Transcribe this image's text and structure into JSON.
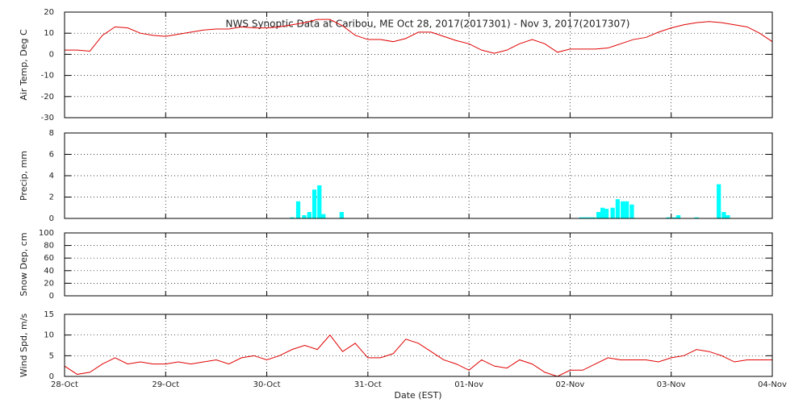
{
  "chart_data": [
    {
      "type": "line",
      "title": "NWS Synoptic Data at Caribou, ME   Oct 28, 2017(2017301) - Nov  3, 2017(2017307)",
      "ylabel": "Air Temp, Deg C",
      "color": "#e00000",
      "grid": true,
      "xlim": [
        0,
        7
      ],
      "ylim": [
        -30,
        20
      ],
      "yticks": [
        -30,
        -20,
        -10,
        0,
        10,
        20
      ],
      "x": [
        0,
        0.125,
        0.25,
        0.375,
        0.5,
        0.625,
        0.75,
        0.875,
        1,
        1.125,
        1.25,
        1.375,
        1.5,
        1.625,
        1.75,
        1.875,
        2,
        2.125,
        2.25,
        2.375,
        2.5,
        2.625,
        2.75,
        2.875,
        3,
        3.125,
        3.25,
        3.375,
        3.5,
        3.625,
        3.75,
        3.875,
        4,
        4.125,
        4.25,
        4.375,
        4.5,
        4.625,
        4.75,
        4.875,
        5,
        5.125,
        5.25,
        5.375,
        5.5,
        5.625,
        5.75,
        5.875,
        6,
        6.125,
        6.25,
        6.375,
        6.5,
        6.625,
        6.75,
        6.875,
        7
      ],
      "values": [
        2,
        2,
        1.5,
        9,
        13,
        12.5,
        10,
        9,
        8.5,
        9.5,
        10.5,
        11.5,
        12,
        12,
        13,
        12.5,
        12.5,
        13,
        14,
        15,
        16.5,
        16.5,
        13.5,
        9,
        7,
        7,
        6,
        7.5,
        10.5,
        10.5,
        8.5,
        6.5,
        5,
        2,
        0.5,
        2,
        5,
        7,
        5,
        1,
        2.5,
        2.5,
        2.5,
        3,
        5,
        7,
        8,
        10.5,
        12.5,
        14,
        15,
        15.5,
        15,
        14,
        13,
        10,
        6
      ]
    },
    {
      "type": "bar",
      "ylabel": "Precip, mm",
      "color": "#00ffff",
      "grid": true,
      "xlim": [
        0,
        7
      ],
      "ylim": [
        0,
        8
      ],
      "yticks": [
        0,
        2,
        4,
        6,
        8
      ],
      "x": [
        2.23,
        2.29,
        2.35,
        2.4,
        2.45,
        2.5,
        2.54,
        2.72,
        5.09,
        5.13,
        5.17,
        5.21,
        5.26,
        5.3,
        5.34,
        5.4,
        5.45,
        5.5,
        5.54,
        5.59,
        5.95,
        6.01,
        6.05,
        6.23,
        6.45,
        6.5,
        6.54
      ],
      "values": [
        0.1,
        1.6,
        0.3,
        0.6,
        2.7,
        3.1,
        0.4,
        0.6,
        0.1,
        0.1,
        0.1,
        0.1,
        0.6,
        1.0,
        0.9,
        1.0,
        1.8,
        1.6,
        1.6,
        1.3,
        0.1,
        0.1,
        0.3,
        0.1,
        3.2,
        0.6,
        0.3
      ]
    },
    {
      "type": "line",
      "ylabel": "Snow Dep, cm",
      "color": "#e00000",
      "grid": true,
      "xlim": [
        0,
        7
      ],
      "ylim": [
        0,
        100
      ],
      "yticks": [
        0,
        20,
        40,
        60,
        80,
        100
      ]
    },
    {
      "type": "line",
      "ylabel": "Wind Spd, m/s",
      "xlabel": "Date (EST)",
      "color": "#e00000",
      "grid": true,
      "xlim": [
        0,
        7
      ],
      "ylim": [
        0,
        15
      ],
      "yticks": [
        0,
        5,
        10,
        15
      ],
      "xticks": [
        {
          "value": 0,
          "label": "28-Oct"
        },
        {
          "value": 1,
          "label": "29-Oct"
        },
        {
          "value": 2,
          "label": "30-Oct"
        },
        {
          "value": 3,
          "label": "31-Oct"
        },
        {
          "value": 4,
          "label": "01-Nov"
        },
        {
          "value": 5,
          "label": "02-Nov"
        },
        {
          "value": 6,
          "label": "03-Nov"
        },
        {
          "value": 7,
          "label": "04-Nov"
        }
      ],
      "x": [
        0,
        0.125,
        0.25,
        0.375,
        0.5,
        0.625,
        0.75,
        0.875,
        1,
        1.125,
        1.25,
        1.375,
        1.5,
        1.625,
        1.75,
        1.875,
        2,
        2.125,
        2.25,
        2.375,
        2.5,
        2.625,
        2.75,
        2.875,
        3,
        3.125,
        3.25,
        3.375,
        3.5,
        3.625,
        3.75,
        3.875,
        4,
        4.125,
        4.25,
        4.375,
        4.5,
        4.625,
        4.75,
        4.875,
        5,
        5.125,
        5.25,
        5.375,
        5.5,
        5.625,
        5.75,
        5.875,
        6,
        6.125,
        6.25,
        6.375,
        6.5,
        6.625,
        6.75,
        6.875,
        7
      ],
      "values": [
        2.5,
        0.5,
        1,
        3,
        4.5,
        3,
        3.5,
        3,
        3,
        3.5,
        3,
        3.5,
        4,
        3,
        4.5,
        5,
        4,
        5,
        6.5,
        7.5,
        6.5,
        10,
        6,
        8,
        4.5,
        4.5,
        5.5,
        9,
        8,
        6,
        4,
        3,
        1.5,
        4,
        2.5,
        2,
        4,
        3,
        1,
        0,
        1.5,
        1.5,
        3,
        4.5,
        4,
        4,
        4,
        3.5,
        4.5,
        5,
        6.5,
        6,
        5,
        3.5,
        4,
        4,
        4
      ]
    }
  ]
}
